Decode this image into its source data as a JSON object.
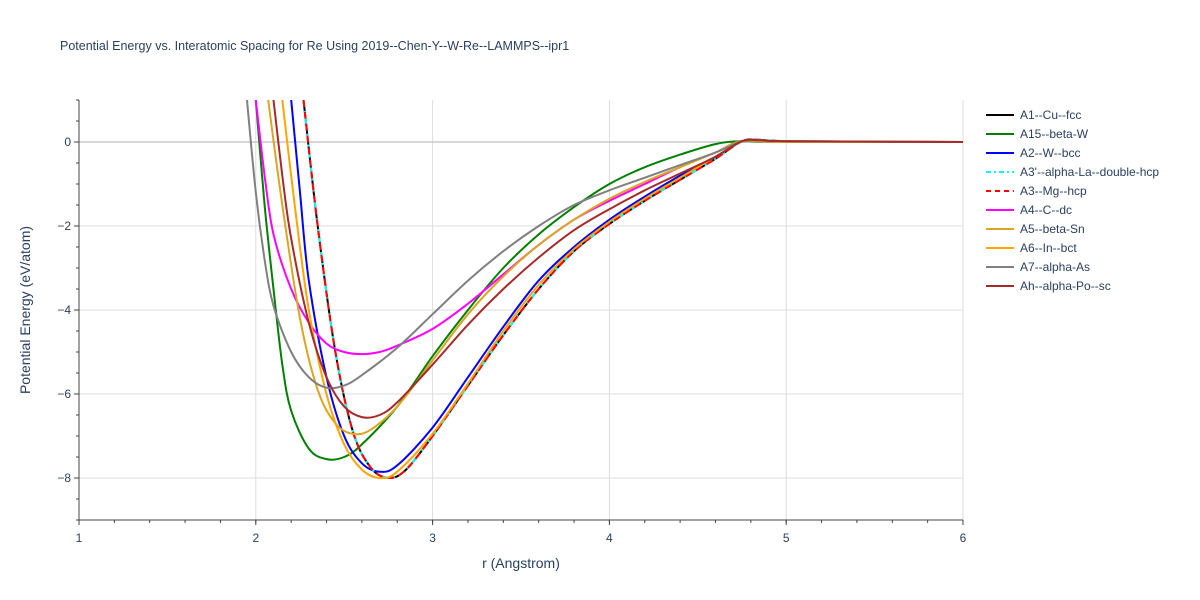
{
  "chart_data": {
    "type": "line",
    "title": "Potential Energy vs. Interatomic Spacing for Re Using 2019--Chen-Y--W-Re--LAMMPS--ipr1",
    "xlabel": "r (Angstrom)",
    "ylabel": "Potential Energy (eV/atom)",
    "xlim": [
      1,
      6
    ],
    "ylim": [
      -9,
      1
    ],
    "x_ticks": [
      "1",
      "2",
      "3",
      "4",
      "5",
      "6"
    ],
    "y_ticks": [
      "0",
      "−2",
      "−4",
      "−6",
      "−8"
    ],
    "grid": true,
    "legend_position": "right",
    "series": [
      {
        "name": "A1--Cu--fcc",
        "color": "#000000",
        "dash": "solid",
        "points": [
          [
            2.27,
            1
          ],
          [
            2.35,
            -2
          ],
          [
            2.45,
            -5
          ],
          [
            2.55,
            -6.9
          ],
          [
            2.65,
            -7.75
          ],
          [
            2.75,
            -8.0
          ],
          [
            2.85,
            -7.8
          ],
          [
            3.0,
            -7.0
          ],
          [
            3.2,
            -5.8
          ],
          [
            3.4,
            -4.6
          ],
          [
            3.6,
            -3.5
          ],
          [
            3.8,
            -2.6
          ],
          [
            4.0,
            -1.95
          ],
          [
            4.2,
            -1.4
          ],
          [
            4.4,
            -0.9
          ],
          [
            4.6,
            -0.4
          ],
          [
            4.75,
            0.02
          ],
          [
            4.85,
            0.05
          ],
          [
            5.0,
            0.02
          ],
          [
            5.5,
            0.0
          ],
          [
            6.0,
            0.0
          ]
        ]
      },
      {
        "name": "A15--beta-W",
        "color": "#008000",
        "dash": "solid",
        "points": [
          [
            2.0,
            1
          ],
          [
            2.05,
            -1.5
          ],
          [
            2.1,
            -3.5
          ],
          [
            2.15,
            -5.3
          ],
          [
            2.2,
            -6.4
          ],
          [
            2.3,
            -7.3
          ],
          [
            2.4,
            -7.55
          ],
          [
            2.5,
            -7.5
          ],
          [
            2.6,
            -7.2
          ],
          [
            2.8,
            -6.3
          ],
          [
            3.0,
            -5.1
          ],
          [
            3.2,
            -4.0
          ],
          [
            3.4,
            -3.0
          ],
          [
            3.6,
            -2.2
          ],
          [
            3.8,
            -1.55
          ],
          [
            4.0,
            -1.0
          ],
          [
            4.2,
            -0.6
          ],
          [
            4.4,
            -0.3
          ],
          [
            4.6,
            -0.05
          ],
          [
            4.75,
            0.02
          ],
          [
            5.0,
            0.0
          ],
          [
            6.0,
            0.0
          ]
        ]
      },
      {
        "name": "A2--W--bcc",
        "color": "#0000ff",
        "dash": "solid",
        "points": [
          [
            2.2,
            1
          ],
          [
            2.25,
            -1.2
          ],
          [
            2.3,
            -3.3
          ],
          [
            2.4,
            -5.6
          ],
          [
            2.5,
            -7.0
          ],
          [
            2.6,
            -7.65
          ],
          [
            2.7,
            -7.85
          ],
          [
            2.8,
            -7.7
          ],
          [
            3.0,
            -6.8
          ],
          [
            3.2,
            -5.6
          ],
          [
            3.4,
            -4.4
          ],
          [
            3.6,
            -3.3
          ],
          [
            3.8,
            -2.5
          ],
          [
            4.0,
            -1.85
          ],
          [
            4.2,
            -1.3
          ],
          [
            4.4,
            -0.8
          ],
          [
            4.6,
            -0.35
          ],
          [
            4.75,
            0.02
          ],
          [
            4.85,
            0.05
          ],
          [
            5.0,
            0.02
          ],
          [
            6.0,
            0.0
          ]
        ]
      },
      {
        "name": "A3'--alpha-La--double-hcp",
        "color": "#00ffff",
        "dash": "dashdot",
        "points": [
          [
            2.27,
            1
          ],
          [
            2.35,
            -2
          ],
          [
            2.45,
            -5
          ],
          [
            2.55,
            -6.9
          ],
          [
            2.65,
            -7.75
          ],
          [
            2.75,
            -8.0
          ],
          [
            2.85,
            -7.8
          ],
          [
            3.0,
            -7.0
          ],
          [
            3.2,
            -5.8
          ],
          [
            3.4,
            -4.6
          ],
          [
            3.6,
            -3.5
          ],
          [
            3.8,
            -2.6
          ],
          [
            4.0,
            -1.95
          ],
          [
            4.2,
            -1.4
          ],
          [
            4.4,
            -0.9
          ],
          [
            4.6,
            -0.4
          ],
          [
            4.75,
            0.02
          ],
          [
            4.85,
            0.05
          ],
          [
            5.0,
            0.02
          ],
          [
            5.5,
            0.0
          ],
          [
            6.0,
            0.0
          ]
        ]
      },
      {
        "name": "A3--Mg--hcp",
        "color": "#ff0000",
        "dash": "dash",
        "points": [
          [
            2.27,
            1
          ],
          [
            2.35,
            -2
          ],
          [
            2.45,
            -5
          ],
          [
            2.55,
            -6.9
          ],
          [
            2.65,
            -7.75
          ],
          [
            2.75,
            -8.0
          ],
          [
            2.85,
            -7.8
          ],
          [
            3.0,
            -7.0
          ],
          [
            3.2,
            -5.8
          ],
          [
            3.4,
            -4.6
          ],
          [
            3.6,
            -3.5
          ],
          [
            3.8,
            -2.6
          ],
          [
            4.0,
            -1.95
          ],
          [
            4.2,
            -1.4
          ],
          [
            4.4,
            -0.9
          ],
          [
            4.6,
            -0.4
          ],
          [
            4.75,
            0.02
          ],
          [
            4.85,
            0.05
          ],
          [
            5.0,
            0.02
          ],
          [
            5.5,
            0.0
          ],
          [
            6.0,
            0.0
          ]
        ]
      },
      {
        "name": "A4--C--dc",
        "color": "#ff00ff",
        "dash": "solid",
        "points": [
          [
            2.0,
            1
          ],
          [
            2.05,
            -0.8
          ],
          [
            2.1,
            -2.2
          ],
          [
            2.2,
            -3.5
          ],
          [
            2.3,
            -4.3
          ],
          [
            2.4,
            -4.8
          ],
          [
            2.5,
            -5.0
          ],
          [
            2.6,
            -5.05
          ],
          [
            2.7,
            -5.0
          ],
          [
            2.8,
            -4.85
          ],
          [
            3.0,
            -4.45
          ],
          [
            3.2,
            -3.85
          ],
          [
            3.4,
            -3.15
          ],
          [
            3.6,
            -2.45
          ],
          [
            3.8,
            -1.85
          ],
          [
            4.0,
            -1.4
          ],
          [
            4.2,
            -1.0
          ],
          [
            4.4,
            -0.6
          ],
          [
            4.6,
            -0.25
          ],
          [
            4.75,
            0.02
          ],
          [
            5.0,
            0.0
          ],
          [
            6.0,
            0.0
          ]
        ]
      },
      {
        "name": "A5--beta-Sn",
        "color": "#daa520",
        "dash": "solid",
        "points": [
          [
            2.07,
            1
          ],
          [
            2.15,
            -1.5
          ],
          [
            2.25,
            -4.2
          ],
          [
            2.35,
            -5.9
          ],
          [
            2.45,
            -6.7
          ],
          [
            2.55,
            -6.95
          ],
          [
            2.65,
            -6.85
          ],
          [
            2.8,
            -6.3
          ],
          [
            3.0,
            -5.2
          ],
          [
            3.2,
            -4.1
          ],
          [
            3.4,
            -3.2
          ],
          [
            3.6,
            -2.45
          ],
          [
            3.8,
            -1.85
          ],
          [
            4.0,
            -1.35
          ],
          [
            4.2,
            -0.95
          ],
          [
            4.4,
            -0.6
          ],
          [
            4.6,
            -0.25
          ],
          [
            4.75,
            0.02
          ],
          [
            5.0,
            0.0
          ],
          [
            6.0,
            0.0
          ]
        ]
      },
      {
        "name": "A6--In--bct",
        "color": "#ffa500",
        "dash": "solid",
        "points": [
          [
            2.15,
            1
          ],
          [
            2.22,
            -1.5
          ],
          [
            2.3,
            -4.0
          ],
          [
            2.4,
            -6.0
          ],
          [
            2.5,
            -7.2
          ],
          [
            2.6,
            -7.8
          ],
          [
            2.7,
            -8.0
          ],
          [
            2.8,
            -7.85
          ],
          [
            3.0,
            -6.95
          ],
          [
            3.2,
            -5.75
          ],
          [
            3.4,
            -4.5
          ],
          [
            3.6,
            -3.4
          ],
          [
            3.8,
            -2.55
          ],
          [
            4.0,
            -1.9
          ],
          [
            4.2,
            -1.35
          ],
          [
            4.4,
            -0.85
          ],
          [
            4.6,
            -0.35
          ],
          [
            4.75,
            0.02
          ],
          [
            4.85,
            0.04
          ],
          [
            5.0,
            0.02
          ],
          [
            6.0,
            0.0
          ]
        ]
      },
      {
        "name": "A7--alpha-As",
        "color": "#808080",
        "dash": "solid",
        "points": [
          [
            1.95,
            1
          ],
          [
            2.0,
            -1.2
          ],
          [
            2.05,
            -2.8
          ],
          [
            2.1,
            -3.9
          ],
          [
            2.2,
            -5.0
          ],
          [
            2.3,
            -5.6
          ],
          [
            2.4,
            -5.85
          ],
          [
            2.5,
            -5.8
          ],
          [
            2.6,
            -5.55
          ],
          [
            2.8,
            -4.9
          ],
          [
            3.0,
            -4.1
          ],
          [
            3.2,
            -3.3
          ],
          [
            3.4,
            -2.6
          ],
          [
            3.6,
            -2.0
          ],
          [
            3.8,
            -1.5
          ],
          [
            4.0,
            -1.15
          ],
          [
            4.2,
            -0.85
          ],
          [
            4.4,
            -0.55
          ],
          [
            4.6,
            -0.25
          ],
          [
            4.75,
            0.02
          ],
          [
            4.85,
            0.05
          ],
          [
            5.0,
            0.02
          ],
          [
            6.0,
            0.0
          ]
        ]
      },
      {
        "name": "Ah--alpha-Po--sc",
        "color": "#a52a2a",
        "dash": "solid",
        "points": [
          [
            2.1,
            1
          ],
          [
            2.15,
            -0.8
          ],
          [
            2.2,
            -2.3
          ],
          [
            2.3,
            -4.3
          ],
          [
            2.4,
            -5.6
          ],
          [
            2.5,
            -6.3
          ],
          [
            2.6,
            -6.55
          ],
          [
            2.7,
            -6.5
          ],
          [
            2.8,
            -6.2
          ],
          [
            3.0,
            -5.3
          ],
          [
            3.2,
            -4.35
          ],
          [
            3.4,
            -3.5
          ],
          [
            3.6,
            -2.75
          ],
          [
            3.8,
            -2.1
          ],
          [
            4.0,
            -1.6
          ],
          [
            4.2,
            -1.15
          ],
          [
            4.4,
            -0.75
          ],
          [
            4.6,
            -0.35
          ],
          [
            4.75,
            0.02
          ],
          [
            4.85,
            0.04
          ],
          [
            5.0,
            0.02
          ],
          [
            6.0,
            0.0
          ]
        ]
      }
    ]
  }
}
